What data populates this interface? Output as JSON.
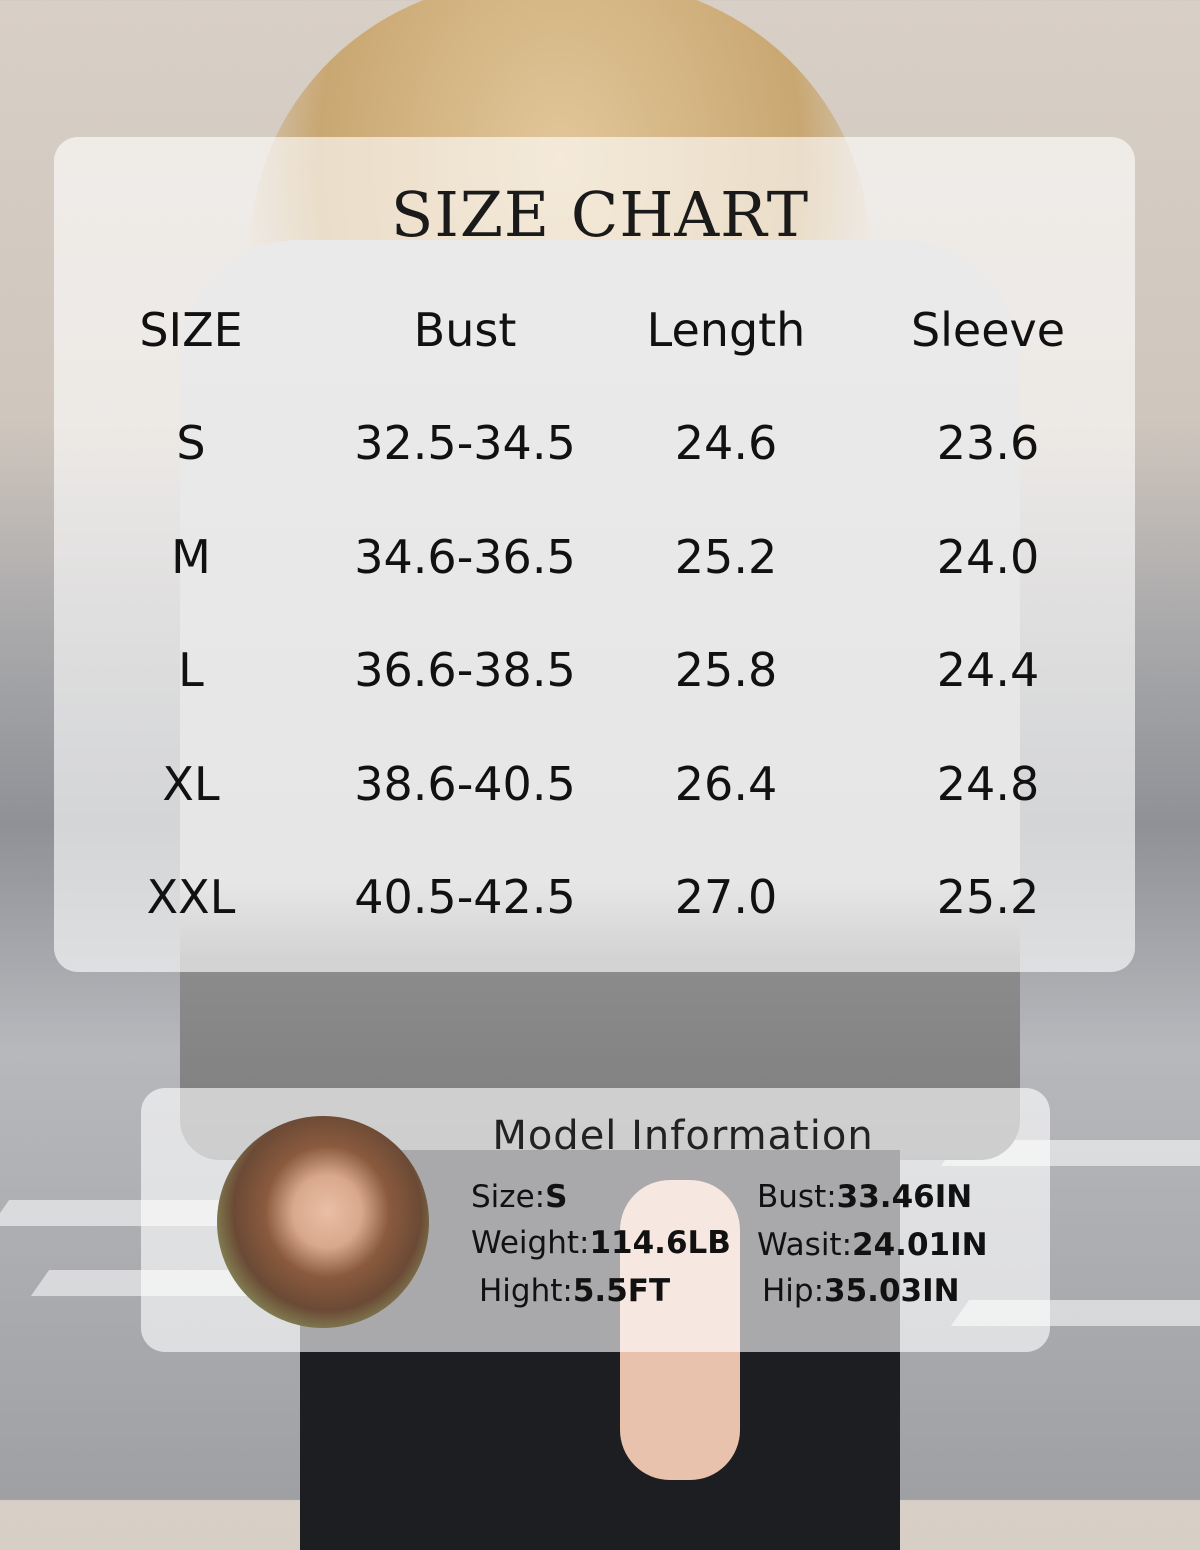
{
  "size_chart": {
    "title": "SIZE CHART",
    "headers": [
      "SIZE",
      "Bust",
      "Length",
      "Sleeve"
    ],
    "rows": [
      [
        "S",
        "32.5-34.5",
        "24.6",
        "23.6"
      ],
      [
        "M",
        "34.6-36.5",
        "25.2",
        "24.0"
      ],
      [
        "L",
        "36.6-38.5",
        "25.8",
        "24.4"
      ],
      [
        "XL",
        "38.6-40.5",
        "26.4",
        "24.8"
      ],
      [
        "XXL",
        "40.5-42.5",
        "27.0",
        "25.2"
      ]
    ]
  },
  "model_info": {
    "title": "Model Information",
    "items": [
      {
        "label": "Size:",
        "value": "S"
      },
      {
        "label": "Weight:",
        "value": "114.6LB"
      },
      {
        "label": "Hight:",
        "value": "5.5FT"
      },
      {
        "label": "Bust:",
        "value": "33.46IN"
      },
      {
        "label": "Wasit:",
        "value": "24.01IN"
      },
      {
        "label": "Hip:",
        "value": "35.03IN"
      }
    ]
  }
}
